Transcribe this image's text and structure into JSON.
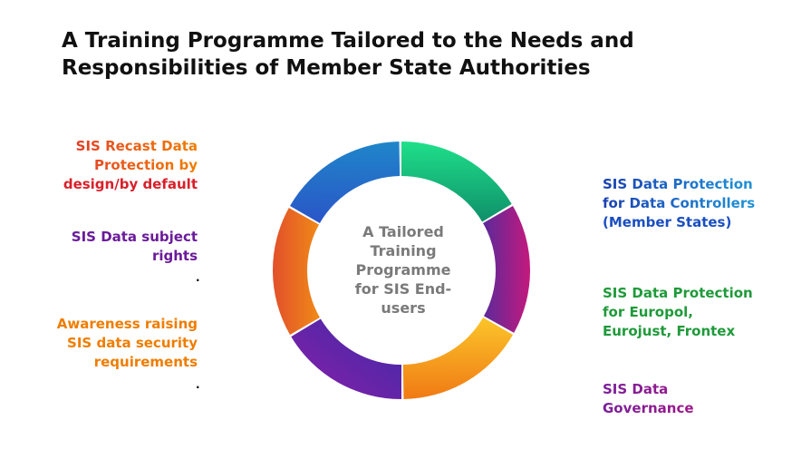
{
  "title": {
    "line1": "A Training Programme Tailored to the Needs and",
    "line2": "Responsibilities of Member State Authorities"
  },
  "center": {
    "line1": "A Tailored",
    "line2": "Training",
    "line3": "Programme",
    "line4": "for SIS End-",
    "line5": "users"
  },
  "left_labels": [
    {
      "lines": [
        "SIS Recast Data",
        "Protection by",
        "design/by default"
      ]
    },
    {
      "lines": [
        "SIS Data subject",
        "rights"
      ]
    },
    {
      "lines": [
        "Awareness raising",
        "SIS data security",
        "requirements"
      ]
    }
  ],
  "right_labels": [
    {
      "lines": [
        "SIS Data Protection",
        "for Data Controllers",
        "(Member States)"
      ]
    },
    {
      "lines": [
        "SIS Data Protection",
        "for Europol,",
        "Eurojust, Frontex"
      ]
    },
    {
      "lines": [
        "SIS Data",
        "Governance"
      ]
    }
  ],
  "dots": [
    ".",
    "."
  ],
  "colors": {
    "segment_orange": "#ec6d1b",
    "segment_blue": "#2b6fd0",
    "segment_green": "#15c878",
    "segment_magenta": "#b0208a",
    "segment_purple": "#6a1fa2",
    "segment_yellow": "#f7b518",
    "label_red": "#d9202a",
    "label_purple": "#6a1b9a",
    "label_orange": "#ef7d00",
    "label_blue": "#1a5fc4",
    "label_green": "#1f9a3a",
    "label_magenta": "#c0127a",
    "center_gray": "#7a7a7a"
  }
}
